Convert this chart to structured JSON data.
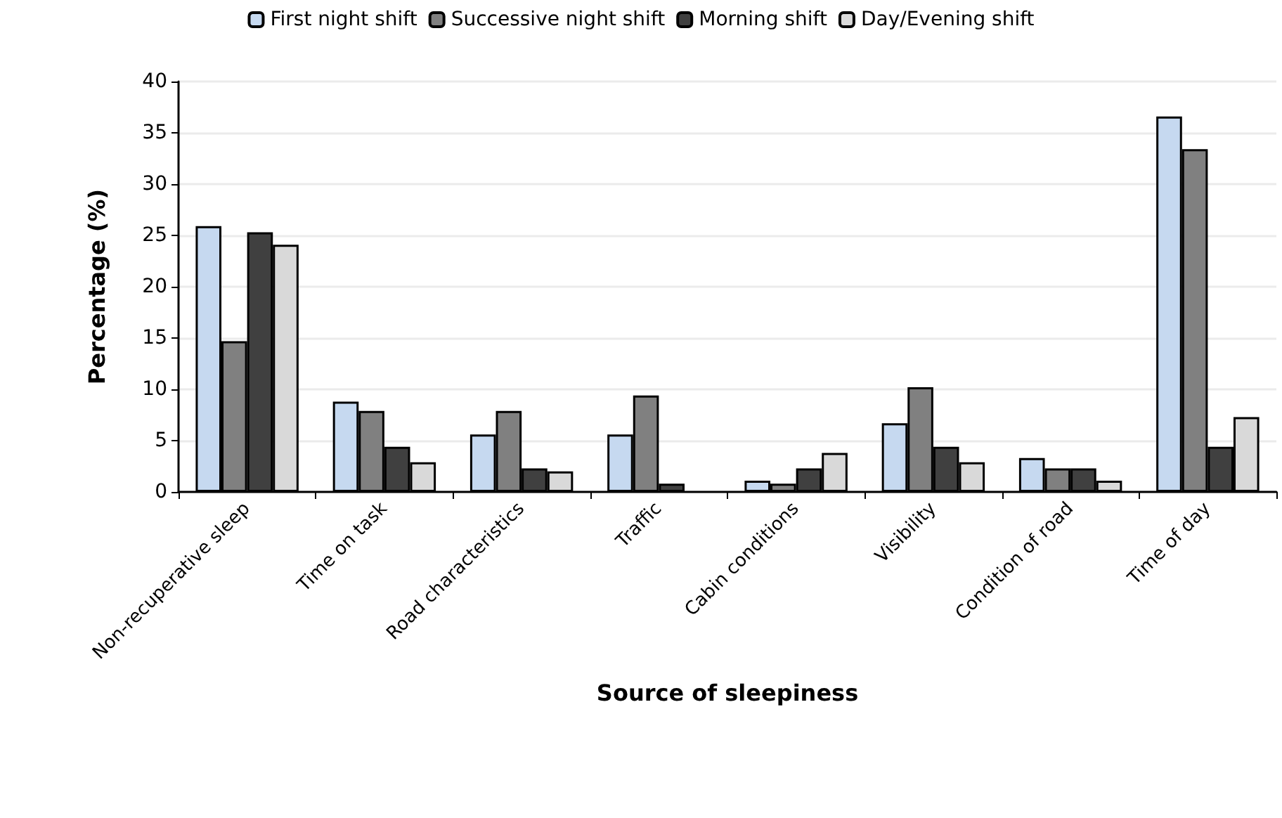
{
  "chart_data": {
    "type": "bar",
    "xlabel": "Source of sleepiness",
    "ylabel": "Percentage (%)",
    "categories": [
      "Non-recuperative sleep",
      "Time on task",
      "Road characteristics",
      "Traffic",
      "Cabin conditions",
      "Visibility",
      "Condition of road",
      "Time of day"
    ],
    "series": [
      {
        "name": "First night shift",
        "color": "#c6d9f0",
        "values": [
          25.9,
          8.8,
          5.6,
          5.6,
          1.1,
          6.7,
          3.3,
          36.6
        ]
      },
      {
        "name": "Successive night shift",
        "color": "#808080",
        "values": [
          14.7,
          7.9,
          7.9,
          9.4,
          0.8,
          10.2,
          2.3,
          33.4
        ]
      },
      {
        "name": "Morning shift",
        "color": "#404040",
        "values": [
          25.3,
          4.4,
          2.3,
          0.8,
          2.3,
          4.4,
          2.3,
          4.4
        ]
      },
      {
        "name": "Day/Evening shift",
        "color": "#d9d9d9",
        "values": [
          24.1,
          2.9,
          2.0,
          null,
          3.8,
          2.9,
          1.1,
          7.3
        ]
      }
    ],
    "ylim": [
      0,
      40
    ],
    "yticks": [
      0,
      5,
      10,
      15,
      20,
      25,
      30,
      35,
      40
    ],
    "grid": "y",
    "legend": "top"
  }
}
